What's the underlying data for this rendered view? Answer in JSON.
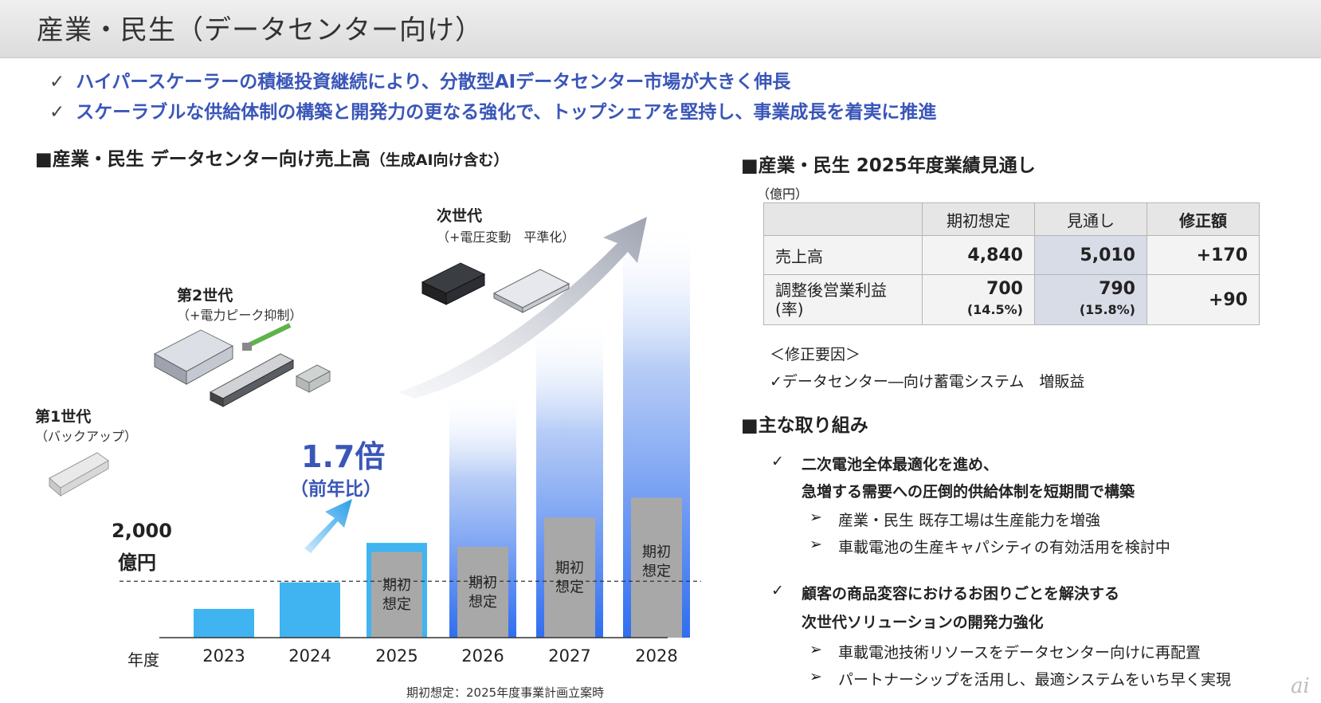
{
  "title": "産業・民生（データセンター向け）",
  "bullets": [
    {
      "check": "✓",
      "text": "ハイパースケーラーの積極投資継続により、分散型AIデータセンター市場が大きく伸長"
    },
    {
      "check": "✓",
      "text": "スケーラブルな供給体制の構築と開発力の更なる強化で、トップシェアを堅持し、事業成長を着実に推進"
    }
  ],
  "left_section": {
    "title": "■産業・民生 データセンター向け売上高",
    "title_note": "（生成AI向け含む）"
  },
  "generations": [
    {
      "title": "第1世代",
      "sub": "（バックアップ）"
    },
    {
      "title": "第2世代",
      "sub": "（+電力ピーク抑制）"
    },
    {
      "title": "次世代",
      "sub": "（+電圧変動　平準化）"
    }
  ],
  "growth": {
    "value": "1.7倍",
    "note": "（前年比）"
  },
  "chart_data": {
    "type": "bar",
    "categories": [
      "2023",
      "2024",
      "2025",
      "2026",
      "2027",
      "2028"
    ],
    "x_axis_label": "年度",
    "reference_line": {
      "value": 2000,
      "label_value": "2,000",
      "label_unit": "億円"
    },
    "series": [
      {
        "name": "",
        "values": [
          1020,
          1960,
          3360,
          null,
          null,
          null
        ],
        "color": "#3fb4f0"
      },
      {
        "name": "期初想定",
        "values": [
          null,
          null,
          3040,
          3220,
          4260,
          4960
        ],
        "color": "#a8a8a8"
      }
    ],
    "projection_color": "#3b78f0",
    "projections": [
      null,
      null,
      null,
      8700,
      11300,
      14800
    ],
    "bar_label": "期初\n想定",
    "ylim": [
      0,
      15600
    ]
  },
  "forecast": {
    "title": "■産業・民生 2025年度業績見通し",
    "unit": "（億円）",
    "headers": [
      "",
      "期初想定",
      "見通し",
      "修正額"
    ],
    "rows": [
      {
        "label": "売上高",
        "initial": "4,840",
        "outlook": "5,010",
        "revision": "+170"
      },
      {
        "label": "調整後営業利益\n(率)",
        "initial": "700",
        "initial_pct": "(14.5%)",
        "outlook": "790",
        "outlook_pct": "(15.8%)",
        "revision": "+90"
      }
    ]
  },
  "revision_factors": {
    "title": "＜修正要因＞",
    "items": [
      "✓データセンター―向け蓄電システム　増販益"
    ]
  },
  "initiatives": {
    "title": "■主な取り組み",
    "groups": [
      {
        "check": "✓",
        "lines": [
          "二次電池全体最適化を進め、",
          "急増する需要への圧倒的供給体制を短期間で構築"
        ],
        "subs": [
          "産業・民生 既存工場は生産能力を増強",
          "車載電池の生産キャパシティの有効活用を検討中"
        ]
      },
      {
        "check": "✓",
        "lines": [
          "顧客の商品変容におけるお困りごとを解決する",
          "次世代ソリューションの開発力強化"
        ],
        "subs": [
          "車載電池技術リソースをデータセンター向けに再配置",
          "パートナーシップを活用し、最適システムをいち早く実現"
        ]
      }
    ],
    "sub_marker": "➢"
  },
  "footnote": "期初想定：2025年度事業計画立案時",
  "logo": "ai"
}
